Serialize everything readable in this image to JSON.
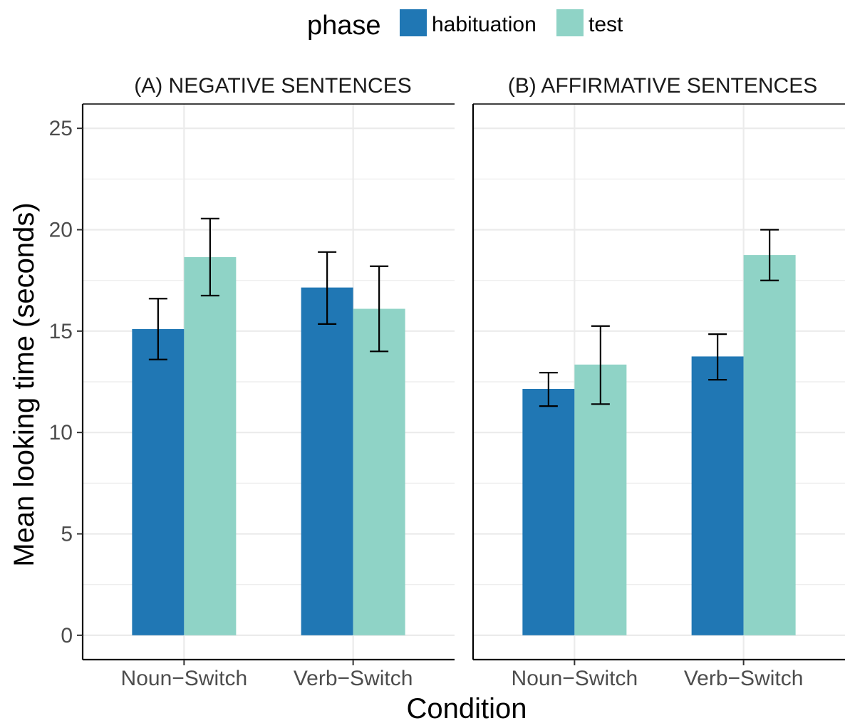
{
  "chart_data": {
    "type": "bar",
    "legend": {
      "title": "phase",
      "position": "top",
      "entries": [
        {
          "name": "habituation",
          "color": "#2077b4"
        },
        {
          "name": "test",
          "color": "#8fd3c6"
        }
      ]
    },
    "xlabel": "Condition",
    "ylabel": "Mean looking time (seconds)",
    "ylim": [
      -1.2,
      26.2
    ],
    "yticks": [
      "0",
      "5",
      "10",
      "15",
      "20",
      "25"
    ],
    "grid": true,
    "categories": [
      "Noun−Switch",
      "Verb−Switch"
    ],
    "panels": [
      {
        "title": "(A) NEGATIVE SENTENCES",
        "series": [
          {
            "name": "habituation",
            "values": [
              15.1,
              17.15
            ],
            "error_low": [
              13.6,
              15.35
            ],
            "error_high": [
              16.6,
              18.9
            ]
          },
          {
            "name": "test",
            "values": [
              18.65,
              16.1
            ],
            "error_low": [
              16.75,
              14.0
            ],
            "error_high": [
              20.55,
              18.2
            ]
          }
        ]
      },
      {
        "title": "(B) AFFIRMATIVE SENTENCES",
        "series": [
          {
            "name": "habituation",
            "values": [
              12.15,
              13.75
            ],
            "error_low": [
              11.3,
              12.6
            ],
            "error_high": [
              12.95,
              14.85
            ]
          },
          {
            "name": "test",
            "values": [
              13.35,
              18.75
            ],
            "error_low": [
              11.4,
              17.5
            ],
            "error_high": [
              15.25,
              20.0
            ]
          }
        ]
      }
    ]
  }
}
